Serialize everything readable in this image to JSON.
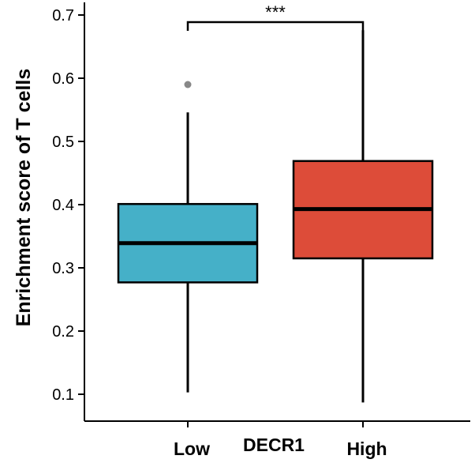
{
  "chart_data": {
    "type": "box",
    "ylabel": "Enrichment score of T cells",
    "xlabel": "DECR1",
    "ylim": [
      0.085,
      0.72
    ],
    "yticks": [
      "0.1",
      "0.2",
      "0.3",
      "0.4",
      "0.5",
      "0.6",
      "0.7"
    ],
    "categories": [
      "Low",
      "High"
    ],
    "groups": [
      {
        "name": "Low",
        "color": "#45b0c8",
        "whisker_low": 0.103,
        "q1": 0.277,
        "median": 0.339,
        "q3": 0.401,
        "whisker_high": 0.546,
        "outliers": [
          0.59
        ]
      },
      {
        "name": "High",
        "color": "#dd4c39",
        "whisker_low": 0.087,
        "q1": 0.315,
        "median": 0.393,
        "q3": 0.469,
        "whisker_high": 0.676,
        "outliers": []
      }
    ],
    "significance": {
      "label": "***",
      "between": [
        "Low",
        "High"
      ],
      "y": 0.7
    },
    "grid": false
  }
}
